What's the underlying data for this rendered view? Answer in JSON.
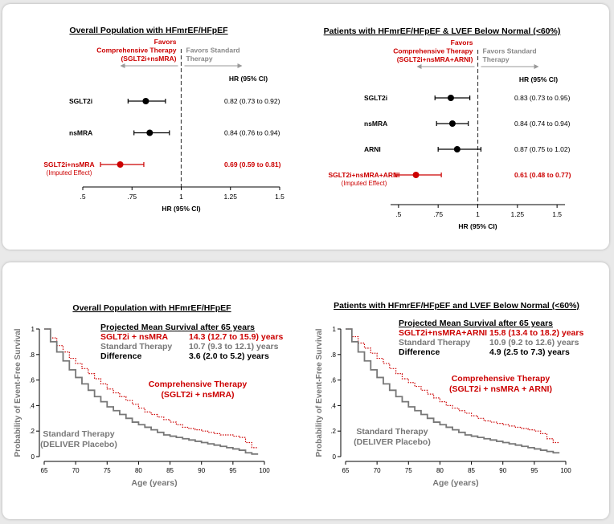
{
  "colors": {
    "red": "#cc0000",
    "black": "#000000",
    "gray": "#777777",
    "lightgray": "#888888"
  },
  "chart_data": [
    {
      "type": "forest",
      "title": "Overall Population with HFmrEF/HFpEF",
      "favors_left": [
        "Favors",
        "Comprehensive Therapy",
        "(SGLT2i+nsMRA)"
      ],
      "favors_right": [
        "Favors Standard",
        "Therapy"
      ],
      "ci_header": "HR (95% CI)",
      "xlabel": "HR (95% CI)",
      "xlim": [
        0.5,
        1.5
      ],
      "ticks": [
        0.5,
        0.75,
        1,
        1.25,
        1.5
      ],
      "tick_labels": [
        ".5",
        ".75",
        "1",
        "1.25",
        "1.5"
      ],
      "rows": [
        {
          "label": "SGLT2i",
          "sublabel": "",
          "hr": 0.82,
          "lo": 0.73,
          "hi": 0.92,
          "text": "0.82 (0.73 to 0.92)",
          "highlight": false
        },
        {
          "label": "nsMRA",
          "sublabel": "",
          "hr": 0.84,
          "lo": 0.76,
          "hi": 0.94,
          "text": "0.84 (0.76 to 0.94)",
          "highlight": false
        },
        {
          "label": "SGLT2i+nsMRA",
          "sublabel": "(Imputed Effect)",
          "hr": 0.69,
          "lo": 0.59,
          "hi": 0.81,
          "text": "0.69 (0.59 to 0.81)",
          "highlight": true
        }
      ]
    },
    {
      "type": "forest",
      "title": "Patients with HFmrEF/HFpEF & LVEF Below Normal (<60%)",
      "favors_left": [
        "Favors",
        "Comprehensive Therapy",
        "(SGLT2i+nsMRA+ARNI)"
      ],
      "favors_right": [
        "Favors Standard",
        "Therapy"
      ],
      "ci_header": "HR (95% CI)",
      "xlabel": "HR (95% CI)",
      "xlim": [
        0.45,
        1.55
      ],
      "ticks": [
        0.5,
        0.75,
        1,
        1.25,
        1.5
      ],
      "tick_labels": [
        ".5",
        ".75",
        "1",
        "1.25",
        "1.5"
      ],
      "rows": [
        {
          "label": "SGLT2i",
          "sublabel": "",
          "hr": 0.83,
          "lo": 0.73,
          "hi": 0.95,
          "text": "0.83 (0.73 to 0.95)",
          "highlight": false
        },
        {
          "label": "nsMRA",
          "sublabel": "",
          "hr": 0.84,
          "lo": 0.74,
          "hi": 0.94,
          "text": "0.84 (0.74 to 0.94)",
          "highlight": false
        },
        {
          "label": "ARNI",
          "sublabel": "",
          "hr": 0.87,
          "lo": 0.75,
          "hi": 1.02,
          "text": "0.87 (0.75 to 1.02)",
          "highlight": false
        },
        {
          "label": "SGLT2i+nsMRA+ARNI",
          "sublabel": "(Imputed Effect)",
          "hr": 0.61,
          "lo": 0.48,
          "hi": 0.77,
          "text": "0.61 (0.48 to 0.77)",
          "highlight": true
        }
      ]
    },
    {
      "type": "line",
      "title": "Overall Population with HFmrEF/HFpEF",
      "xlabel": "Age (years)",
      "ylabel": "Probability of Event-Free Survival",
      "xlim": [
        65,
        100
      ],
      "ylim": [
        0,
        1
      ],
      "xticks": [
        65,
        70,
        75,
        80,
        85,
        90,
        95,
        100
      ],
      "yticks": [
        0,
        0.2,
        0.4,
        0.6,
        0.8,
        1
      ],
      "ytick_labels": [
        "0",
        ".2",
        ".4",
        ".6",
        ".8",
        "1"
      ],
      "summary": {
        "heading": "Projected Mean Survival after 65 years",
        "rows": [
          {
            "label": "SGLT2i + nsMRA",
            "value": "14.3 (12.7 to 15.9) years",
            "style": "red"
          },
          {
            "label": "Standard Therapy",
            "value": "10.7 (9.3 to 12.1) years",
            "style": "gray"
          },
          {
            "label": "Difference",
            "value": "3.6 (2.0 to 5.2) years",
            "style": "black"
          }
        ]
      },
      "series": [
        {
          "name": "Comprehensive Therapy (SGLT2i + nsMRA)",
          "label_lines": [
            "Comprehensive Therapy",
            "(SGLT2i + nsMRA)"
          ],
          "style": "red-dotted",
          "x": [
            65,
            66,
            67,
            68,
            69,
            70,
            71,
            72,
            73,
            74,
            75,
            76,
            77,
            78,
            79,
            80,
            81,
            82,
            83,
            84,
            85,
            86,
            87,
            88,
            89,
            90,
            91,
            92,
            93,
            94,
            95,
            96,
            97,
            98,
            99
          ],
          "y": [
            1.0,
            0.93,
            0.87,
            0.82,
            0.77,
            0.73,
            0.69,
            0.65,
            0.61,
            0.57,
            0.53,
            0.5,
            0.47,
            0.44,
            0.41,
            0.38,
            0.35,
            0.33,
            0.31,
            0.29,
            0.27,
            0.25,
            0.23,
            0.22,
            0.21,
            0.2,
            0.19,
            0.18,
            0.17,
            0.17,
            0.16,
            0.15,
            0.11,
            0.07,
            0.07
          ]
        },
        {
          "name": "Standard Therapy (DELIVER Placebo)",
          "label_lines": [
            "Standard Therapy",
            "(DELIVER Placebo)"
          ],
          "style": "gray-solid",
          "x": [
            65,
            66,
            67,
            68,
            69,
            70,
            71,
            72,
            73,
            74,
            75,
            76,
            77,
            78,
            79,
            80,
            81,
            82,
            83,
            84,
            85,
            86,
            87,
            88,
            89,
            90,
            91,
            92,
            93,
            94,
            95,
            96,
            97,
            98,
            99
          ],
          "y": [
            1.0,
            0.9,
            0.82,
            0.75,
            0.68,
            0.62,
            0.57,
            0.52,
            0.47,
            0.43,
            0.39,
            0.36,
            0.33,
            0.3,
            0.27,
            0.25,
            0.23,
            0.21,
            0.19,
            0.17,
            0.16,
            0.15,
            0.14,
            0.13,
            0.12,
            0.11,
            0.1,
            0.09,
            0.08,
            0.07,
            0.06,
            0.05,
            0.03,
            0.02,
            0.02
          ]
        }
      ]
    },
    {
      "type": "line",
      "title": "Patients with HFmrEF/HFpEF and LVEF Below Normal (<60%)",
      "xlabel": "Age (years)",
      "ylabel": "Probability of Event-Free Survival",
      "xlim": [
        65,
        100
      ],
      "ylim": [
        0,
        1
      ],
      "xticks": [
        65,
        70,
        75,
        80,
        85,
        90,
        95,
        100
      ],
      "yticks": [
        0,
        0.2,
        0.4,
        0.6,
        0.8,
        1
      ],
      "ytick_labels": [
        "0",
        ".2",
        ".4",
        ".6",
        ".8",
        "1"
      ],
      "summary": {
        "heading": "Projected Mean Survival after 65 years",
        "rows": [
          {
            "label": "SGLT2i+nsMRA+ARNI",
            "value": "15.8 (13.4 to 18.2) years",
            "style": "red"
          },
          {
            "label": "Standard Therapy",
            "value": "10.9 (9.2 to 12.6) years",
            "style": "gray"
          },
          {
            "label": "Difference",
            "value": "4.9 (2.5 to 7.3) years",
            "style": "black"
          }
        ]
      },
      "series": [
        {
          "name": "Comprehensive Therapy (SGLT2i + nsMRA + ARNI)",
          "label_lines": [
            "Comprehensive Therapy",
            "(SGLT2i + nsMRA + ARNI)"
          ],
          "style": "red-dotted",
          "x": [
            65,
            66,
            67,
            68,
            69,
            70,
            71,
            72,
            73,
            74,
            75,
            76,
            77,
            78,
            79,
            80,
            81,
            82,
            83,
            84,
            85,
            86,
            87,
            88,
            89,
            90,
            91,
            92,
            93,
            94,
            95,
            96,
            97,
            98,
            99
          ],
          "y": [
            1.0,
            0.94,
            0.89,
            0.85,
            0.81,
            0.77,
            0.73,
            0.69,
            0.65,
            0.61,
            0.58,
            0.55,
            0.52,
            0.49,
            0.46,
            0.43,
            0.4,
            0.38,
            0.36,
            0.34,
            0.32,
            0.3,
            0.28,
            0.27,
            0.26,
            0.25,
            0.24,
            0.23,
            0.22,
            0.21,
            0.2,
            0.18,
            0.14,
            0.11,
            0.11
          ]
        },
        {
          "name": "Standard Therapy (DELIVER Placebo)",
          "label_lines": [
            "Standard Therapy",
            "(DELIVER Placebo)"
          ],
          "style": "gray-solid",
          "x": [
            65,
            66,
            67,
            68,
            69,
            70,
            71,
            72,
            73,
            74,
            75,
            76,
            77,
            78,
            79,
            80,
            81,
            82,
            83,
            84,
            85,
            86,
            87,
            88,
            89,
            90,
            91,
            92,
            93,
            94,
            95,
            96,
            97,
            98,
            99
          ],
          "y": [
            1.0,
            0.9,
            0.82,
            0.75,
            0.68,
            0.62,
            0.57,
            0.52,
            0.47,
            0.43,
            0.39,
            0.36,
            0.33,
            0.3,
            0.27,
            0.25,
            0.23,
            0.21,
            0.19,
            0.17,
            0.16,
            0.15,
            0.14,
            0.13,
            0.12,
            0.11,
            0.1,
            0.09,
            0.08,
            0.07,
            0.06,
            0.05,
            0.04,
            0.03,
            0.03
          ]
        }
      ]
    }
  ]
}
